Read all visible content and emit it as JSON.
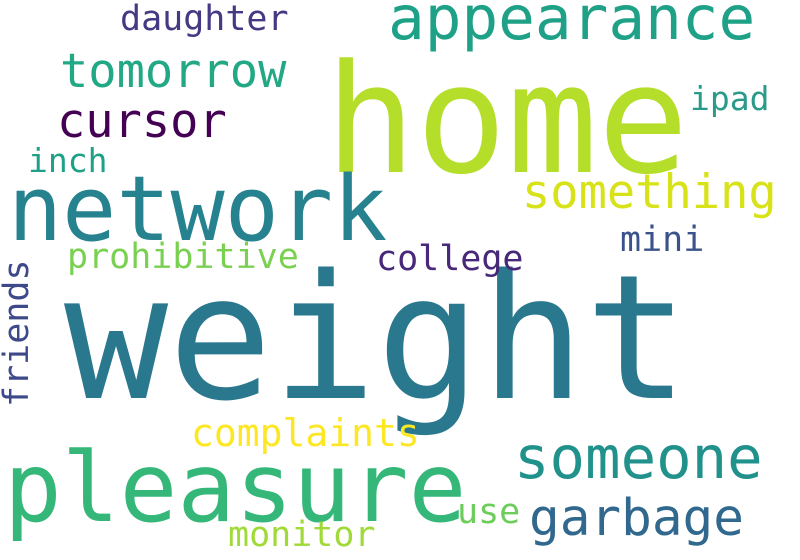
{
  "words": [
    {
      "id": "weight",
      "text": "weight",
      "color": "#2a788e"
    },
    {
      "id": "home",
      "text": "home",
      "color": "#b5de2b"
    },
    {
      "id": "network",
      "text": "network",
      "color": "#26828e"
    },
    {
      "id": "pleasure",
      "text": "pleasure",
      "color": "#35b779"
    },
    {
      "id": "appearance",
      "text": "appearance",
      "color": "#1fa187"
    },
    {
      "id": "someone",
      "text": "someone",
      "color": "#21918c"
    },
    {
      "id": "garbage",
      "text": "garbage",
      "color": "#31688e"
    },
    {
      "id": "something",
      "text": "something",
      "color": "#d8e219"
    },
    {
      "id": "tomorrow",
      "text": "tomorrow",
      "color": "#22a884"
    },
    {
      "id": "cursor",
      "text": "cursor",
      "color": "#440154"
    },
    {
      "id": "complaints",
      "text": "complaints",
      "color": "#fde725"
    },
    {
      "id": "prohibitive",
      "text": "prohibitive",
      "color": "#7ad151"
    },
    {
      "id": "college",
      "text": "college",
      "color": "#482878"
    },
    {
      "id": "daughter",
      "text": "daughter",
      "color": "#443983"
    },
    {
      "id": "monitor",
      "text": "monitor",
      "color": "#a0da39"
    },
    {
      "id": "friends",
      "text": "friends",
      "color": "#3e4989"
    },
    {
      "id": "inch",
      "text": "inch",
      "color": "#1fa188"
    },
    {
      "id": "ipad",
      "text": "ipad",
      "color": "#2a9b8a"
    },
    {
      "id": "mini",
      "text": "mini",
      "color": "#3b528b"
    },
    {
      "id": "use",
      "text": "use",
      "color": "#6ccd5a"
    }
  ]
}
